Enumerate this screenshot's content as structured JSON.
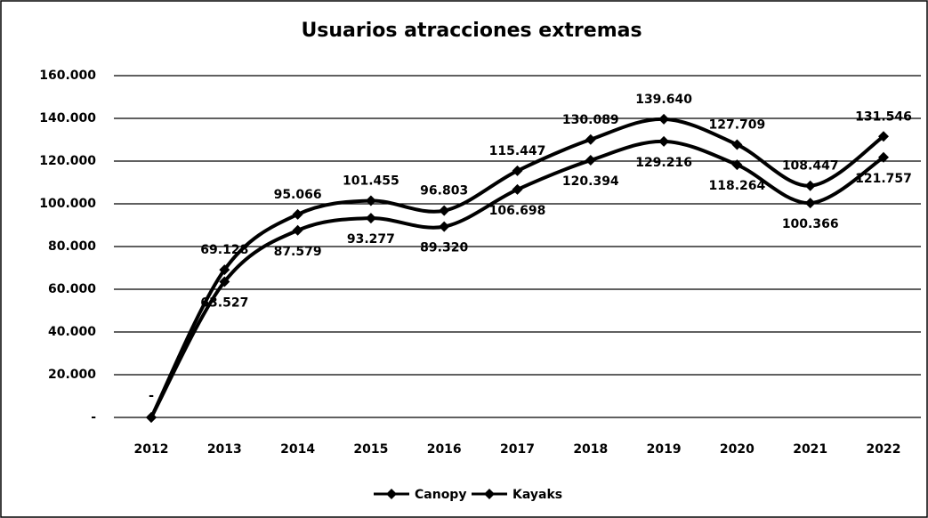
{
  "chart_data": {
    "type": "line",
    "title": "Usuarios atracciones extremas",
    "categories": [
      "2012",
      "2013",
      "2014",
      "2015",
      "2016",
      "2017",
      "2018",
      "2019",
      "2020",
      "2021",
      "2022"
    ],
    "series": [
      {
        "name": "Canopy",
        "color": "#000000",
        "values": [
          0,
          69128,
          95066,
          101455,
          96803,
          115447,
          130089,
          139640,
          127709,
          108447,
          131546
        ],
        "value_labels": [
          "-",
          "69.128",
          "95.066",
          "101.455",
          "96.803",
          "115.447",
          "130.089",
          "139.640",
          "127.709",
          "108.447",
          "131.546"
        ]
      },
      {
        "name": "Kayaks",
        "color": "#000000",
        "values": [
          0,
          63527,
          87579,
          93277,
          89320,
          106698,
          120394,
          129216,
          118264,
          100366,
          121757
        ],
        "value_labels": [
          "-",
          "63.527",
          "87.579",
          "93.277",
          "89.320",
          "106.698",
          "120.394",
          "129.216",
          "118.264",
          "100.366",
          "121.757"
        ]
      }
    ],
    "ylim": [
      0,
      160000
    ],
    "yticks": [
      {
        "value": 0,
        "label": "-"
      },
      {
        "value": 20000,
        "label": "20.000"
      },
      {
        "value": 40000,
        "label": "40.000"
      },
      {
        "value": 60000,
        "label": "60.000"
      },
      {
        "value": 80000,
        "label": "80.000"
      },
      {
        "value": 100000,
        "label": "100.000"
      },
      {
        "value": 120000,
        "label": "120.000"
      },
      {
        "value": 140000,
        "label": "140.000"
      },
      {
        "value": 160000,
        "label": "160.000"
      }
    ],
    "grid": true,
    "legend": "bottom"
  }
}
